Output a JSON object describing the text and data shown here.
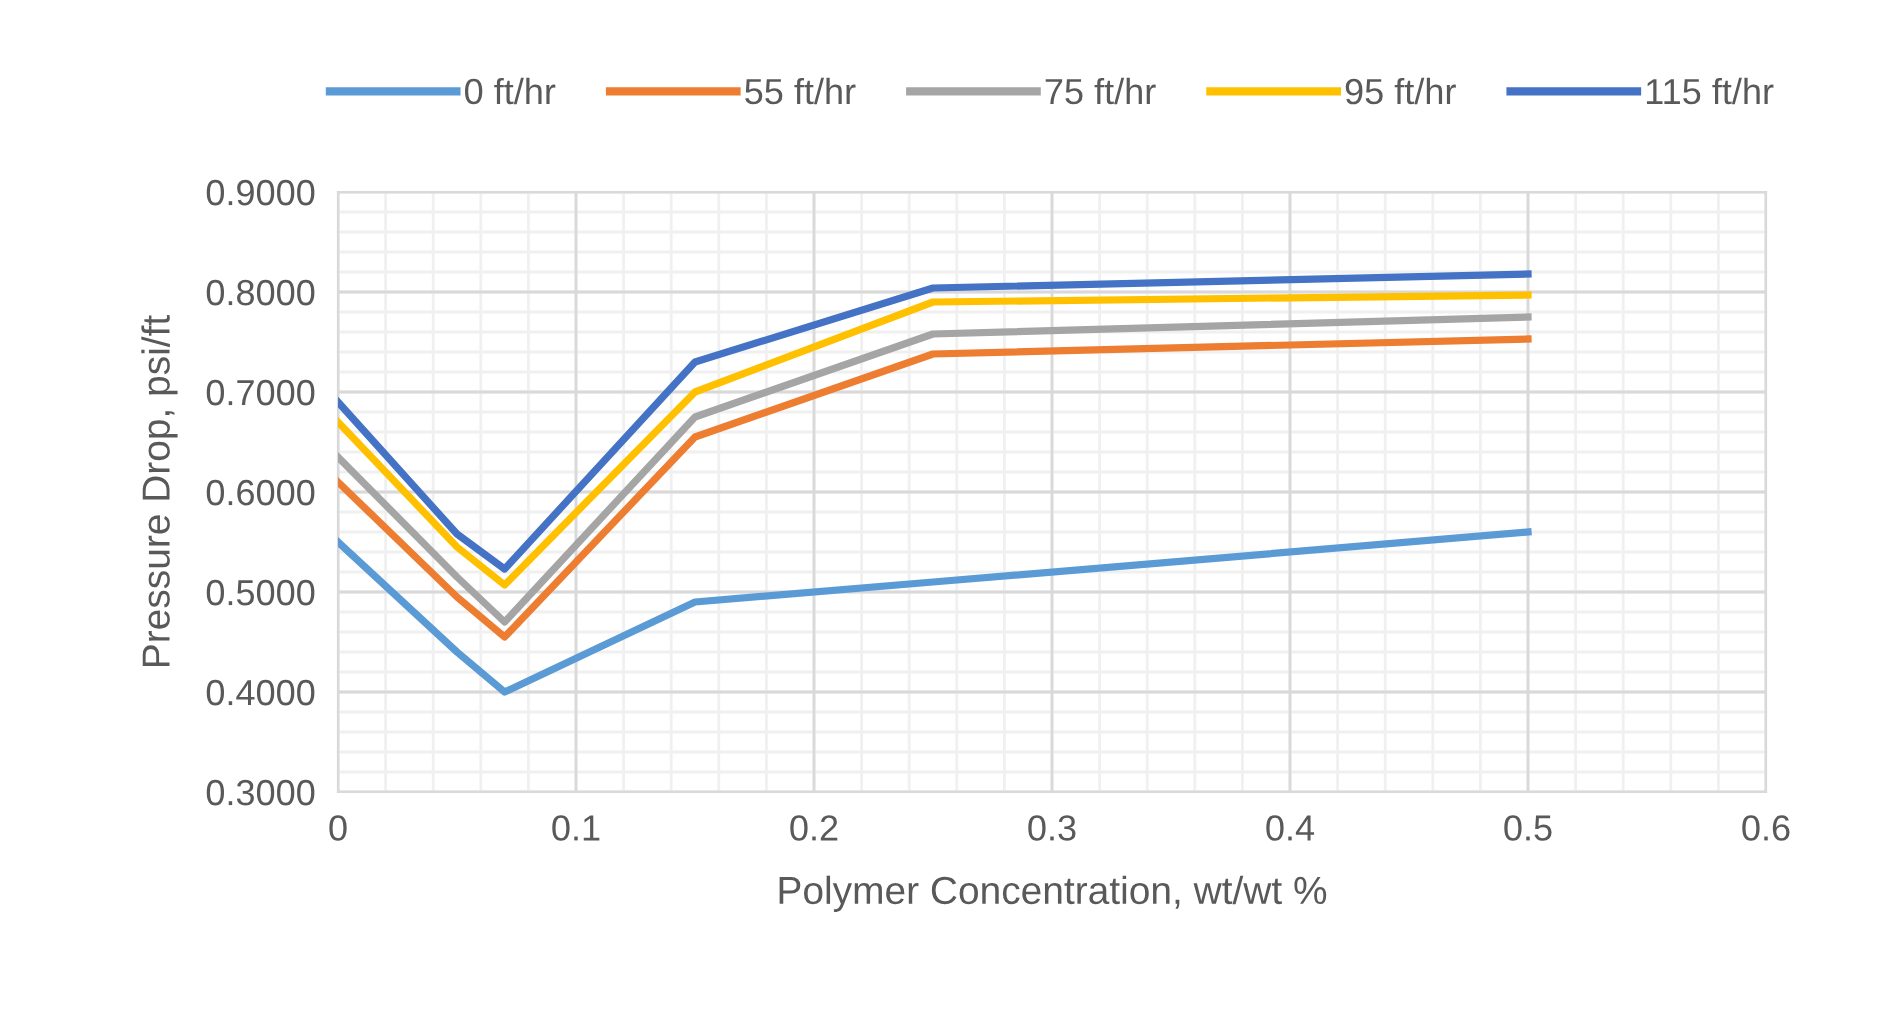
{
  "chart_data": {
    "type": "line",
    "xlabel": "Polymer Concentration, wt/wt %",
    "ylabel": "Pressure Drop, psi/ft",
    "x": [
      0,
      0.05,
      0.07,
      0.15,
      0.25,
      0.5
    ],
    "series": [
      {
        "name": "0 ft/hr",
        "color": "#5b9bd5",
        "values": [
          0.55,
          0.44,
          0.4,
          0.49,
          0.51,
          0.56
        ]
      },
      {
        "name": "55 ft/hr",
        "color": "#ed7d31",
        "values": [
          0.61,
          0.495,
          0.455,
          0.655,
          0.738,
          0.753
        ]
      },
      {
        "name": "75 ft/hr",
        "color": "#a5a5a5",
        "values": [
          0.635,
          0.515,
          0.47,
          0.675,
          0.758,
          0.775
        ]
      },
      {
        "name": "95 ft/hr",
        "color": "#ffc000",
        "values": [
          0.67,
          0.545,
          0.507,
          0.7,
          0.79,
          0.797
        ]
      },
      {
        "name": "115 ft/hr",
        "color": "#4472c4",
        "values": [
          0.69,
          0.558,
          0.523,
          0.73,
          0.804,
          0.818
        ]
      }
    ],
    "xlim": [
      0,
      0.6
    ],
    "xticks": [
      {
        "value": 0,
        "label": "0"
      },
      0.1,
      0.2,
      0.3,
      0.4,
      0.5,
      0.6
    ],
    "ylim": [
      0.3,
      0.9
    ],
    "yticks": [
      {
        "value": 0.3,
        "label": "0.3000"
      },
      {
        "value": 0.4,
        "label": "0.4000"
      },
      {
        "value": 0.5,
        "label": "0.5000"
      },
      {
        "value": 0.6,
        "label": "0.6000"
      },
      {
        "value": 0.7,
        "label": "0.7000"
      },
      {
        "value": 0.8,
        "label": "0.8000"
      },
      {
        "value": 0.9,
        "label": "0.9000"
      }
    ],
    "grid": true,
    "legend": "top",
    "marker": "none",
    "line_style": "solid"
  }
}
